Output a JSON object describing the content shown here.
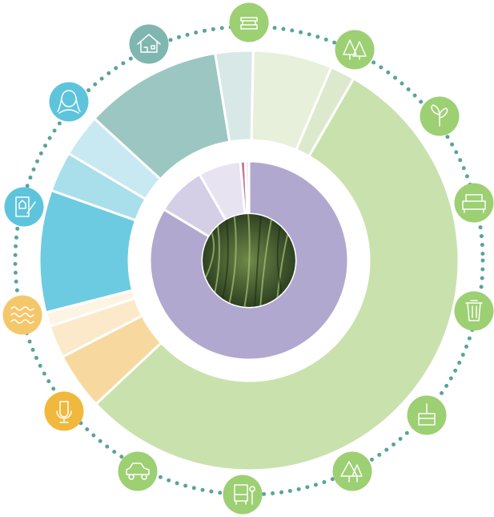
{
  "chart_data": {
    "type": "donut",
    "series": [
      {
        "values": [
          6.1,
          1.9,
          54.7,
          4.4,
          2.5,
          1.1,
          9.4,
          3.1,
          3.3,
          10.6,
          2.9
        ],
        "colors": [
          "#e6f0da",
          "#dde9cc",
          "#c9e2ad",
          "#f7d9a0",
          "#fbe9c9",
          "#fdf4e4",
          "#6ccbe0",
          "#a9dfea",
          "#c8e9f1",
          "#9cc6c2",
          "#d8e8e7"
        ]
      },
      {
        "values": [
          83.6,
          8.1,
          6.9,
          0.8,
          0.6
        ],
        "colors": [
          "#b1a8cf",
          "#d4cee6",
          "#e7e3f0",
          "#c27a98",
          "#e8e2ef"
        ]
      }
    ]
  }
}
